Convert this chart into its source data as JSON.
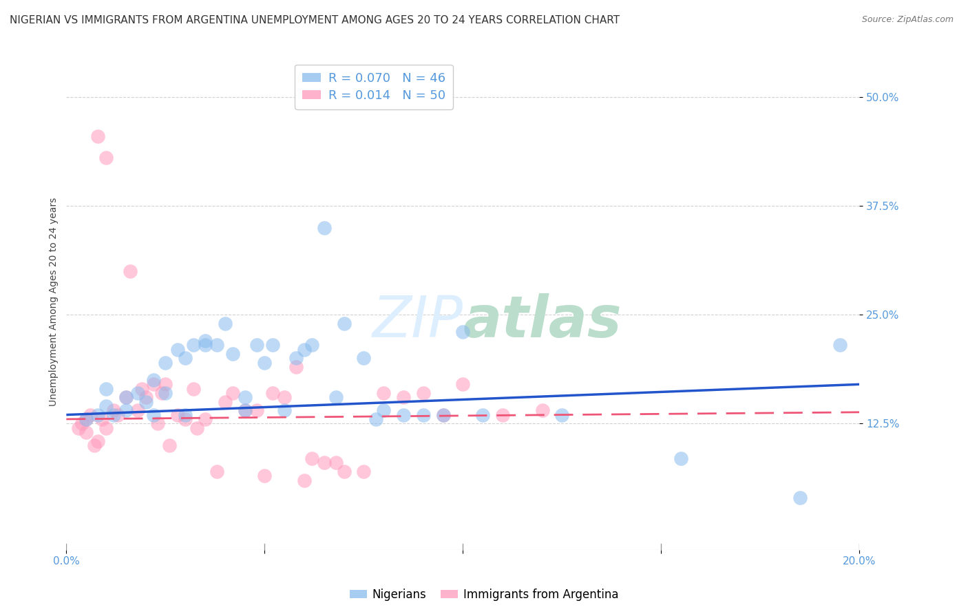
{
  "title": "NIGERIAN VS IMMIGRANTS FROM ARGENTINA UNEMPLOYMENT AMONG AGES 20 TO 24 YEARS CORRELATION CHART",
  "source": "Source: ZipAtlas.com",
  "ylabel": "Unemployment Among Ages 20 to 24 years",
  "xlim": [
    0.0,
    0.2
  ],
  "ylim": [
    -0.02,
    0.55
  ],
  "yticks": [
    0.125,
    0.25,
    0.375,
    0.5
  ],
  "ytick_labels": [
    "12.5%",
    "25.0%",
    "37.5%",
    "50.0%"
  ],
  "xticks": [
    0.0,
    0.05,
    0.1,
    0.15,
    0.2
  ],
  "xtick_labels": [
    "0.0%",
    "",
    "",
    "",
    "20.0%"
  ],
  "legend_blue_label": "R = 0.070   N = 46",
  "legend_pink_label": "R = 0.014   N = 50",
  "nigerians_label": "Nigerians",
  "argentina_label": "Immigrants from Argentina",
  "blue_color": "#88BBEE",
  "pink_color": "#FF99BB",
  "blue_line_color": "#2255CC",
  "pink_line_color": "#EE5577",
  "axis_color": "#5599DD",
  "blue_scatter_x": [
    0.005,
    0.008,
    0.01,
    0.01,
    0.012,
    0.015,
    0.015,
    0.018,
    0.02,
    0.022,
    0.022,
    0.025,
    0.025,
    0.028,
    0.03,
    0.03,
    0.032,
    0.035,
    0.035,
    0.038,
    0.04,
    0.042,
    0.045,
    0.045,
    0.048,
    0.05,
    0.052,
    0.055,
    0.058,
    0.06,
    0.062,
    0.065,
    0.068,
    0.07,
    0.075,
    0.078,
    0.08,
    0.085,
    0.09,
    0.095,
    0.1,
    0.105,
    0.125,
    0.155,
    0.185,
    0.195
  ],
  "blue_scatter_y": [
    0.13,
    0.135,
    0.145,
    0.165,
    0.135,
    0.14,
    0.155,
    0.16,
    0.15,
    0.135,
    0.175,
    0.16,
    0.195,
    0.21,
    0.135,
    0.2,
    0.215,
    0.22,
    0.215,
    0.215,
    0.24,
    0.205,
    0.14,
    0.155,
    0.215,
    0.195,
    0.215,
    0.14,
    0.2,
    0.21,
    0.215,
    0.35,
    0.155,
    0.24,
    0.2,
    0.13,
    0.14,
    0.135,
    0.135,
    0.135,
    0.23,
    0.135,
    0.135,
    0.085,
    0.04,
    0.215
  ],
  "pink_scatter_x": [
    0.003,
    0.004,
    0.005,
    0.005,
    0.006,
    0.007,
    0.008,
    0.008,
    0.009,
    0.01,
    0.01,
    0.012,
    0.013,
    0.015,
    0.016,
    0.018,
    0.019,
    0.02,
    0.022,
    0.023,
    0.024,
    0.025,
    0.026,
    0.028,
    0.03,
    0.032,
    0.033,
    0.035,
    0.038,
    0.04,
    0.042,
    0.045,
    0.048,
    0.05,
    0.052,
    0.055,
    0.058,
    0.06,
    0.062,
    0.065,
    0.068,
    0.07,
    0.075,
    0.08,
    0.085,
    0.09,
    0.095,
    0.1,
    0.11,
    0.12
  ],
  "pink_scatter_y": [
    0.12,
    0.125,
    0.115,
    0.13,
    0.135,
    0.1,
    0.105,
    0.455,
    0.13,
    0.12,
    0.43,
    0.14,
    0.135,
    0.155,
    0.3,
    0.14,
    0.165,
    0.155,
    0.17,
    0.125,
    0.16,
    0.17,
    0.1,
    0.135,
    0.13,
    0.165,
    0.12,
    0.13,
    0.07,
    0.15,
    0.16,
    0.14,
    0.14,
    0.065,
    0.16,
    0.155,
    0.19,
    0.06,
    0.085,
    0.08,
    0.08,
    0.07,
    0.07,
    0.16,
    0.155,
    0.16,
    0.135,
    0.17,
    0.135,
    0.14
  ],
  "blue_line_x0": 0.0,
  "blue_line_y0": 0.135,
  "blue_line_x1": 0.2,
  "blue_line_y1": 0.17,
  "pink_line_x0": 0.0,
  "pink_line_y0": 0.13,
  "pink_line_x1": 0.2,
  "pink_line_y1": 0.138,
  "background_color": "#FFFFFF",
  "grid_color": "#CCCCCC",
  "title_fontsize": 11,
  "label_fontsize": 10,
  "tick_fontsize": 11,
  "watermark_color": "#DDEEFF",
  "watermark_fontsize": 60
}
